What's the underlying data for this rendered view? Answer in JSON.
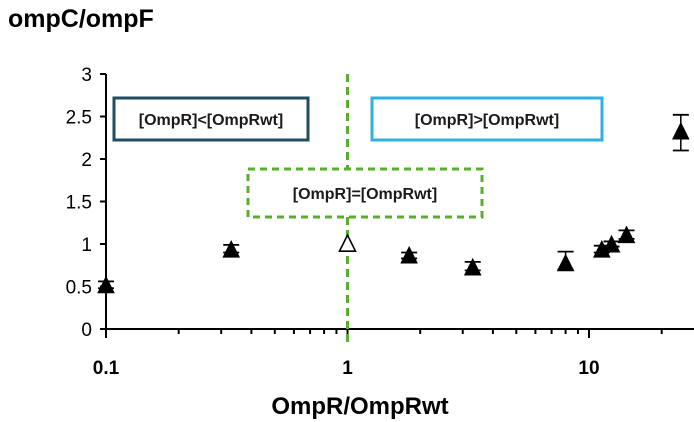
{
  "chart_data": {
    "type": "scatter",
    "title": "ompC/ompF",
    "xlabel": "OmpR/OmpRwt",
    "ylabel": "",
    "x_scale": "log",
    "xlim": [
      0.1,
      30
    ],
    "ylim": [
      0,
      3
    ],
    "y_ticks": [
      "0",
      "0.5",
      "1",
      "1.5",
      "2",
      "2.5",
      "3"
    ],
    "x_ticks": [
      {
        "value": 0.1,
        "label": "0.1"
      },
      {
        "value": 1,
        "label": "1"
      },
      {
        "value": 10,
        "label": "10"
      }
    ],
    "reference_line": {
      "x": 1,
      "style": "dashed",
      "color": "#5aad2e"
    },
    "points": [
      {
        "x": 0.1,
        "y": 0.52,
        "err_hi": 0.56,
        "err_lo": 0.48,
        "filled": true
      },
      {
        "x": 0.33,
        "y": 0.94,
        "err_hi": 0.99,
        "err_lo": 0.9,
        "filled": true
      },
      {
        "x": 1.0,
        "y": 1.01,
        "err_hi": 1.01,
        "err_lo": 1.01,
        "filled": false
      },
      {
        "x": 1.8,
        "y": 0.87,
        "err_hi": 0.9,
        "err_lo": 0.83,
        "filled": true
      },
      {
        "x": 3.3,
        "y": 0.73,
        "err_hi": 0.79,
        "err_lo": 0.69,
        "filled": true
      },
      {
        "x": 8.0,
        "y": 0.78,
        "err_hi": 0.91,
        "err_lo": 0.7,
        "filled": true
      },
      {
        "x": 11.3,
        "y": 0.94,
        "err_hi": 0.98,
        "err_lo": 0.9,
        "filled": true
      },
      {
        "x": 12.4,
        "y": 1.0,
        "err_hi": 1.03,
        "err_lo": 0.97,
        "filled": true
      },
      {
        "x": 14.3,
        "y": 1.11,
        "err_hi": 1.16,
        "err_lo": 1.06,
        "filled": true
      },
      {
        "x": 24.0,
        "y": 2.33,
        "err_hi": 2.52,
        "err_lo": 2.1,
        "filled": true
      }
    ],
    "annotations": [
      {
        "text": "[OmpR]<[OmpRwt]",
        "border_color": "#1f4e63",
        "border_style": "solid"
      },
      {
        "text": "[OmpR]>[OmpRwt]",
        "border_color": "#2eb0e0",
        "border_style": "solid"
      },
      {
        "text": "[OmpR]=[OmpRwt]",
        "border_color": "#5aad2e",
        "border_style": "dashed"
      }
    ]
  }
}
